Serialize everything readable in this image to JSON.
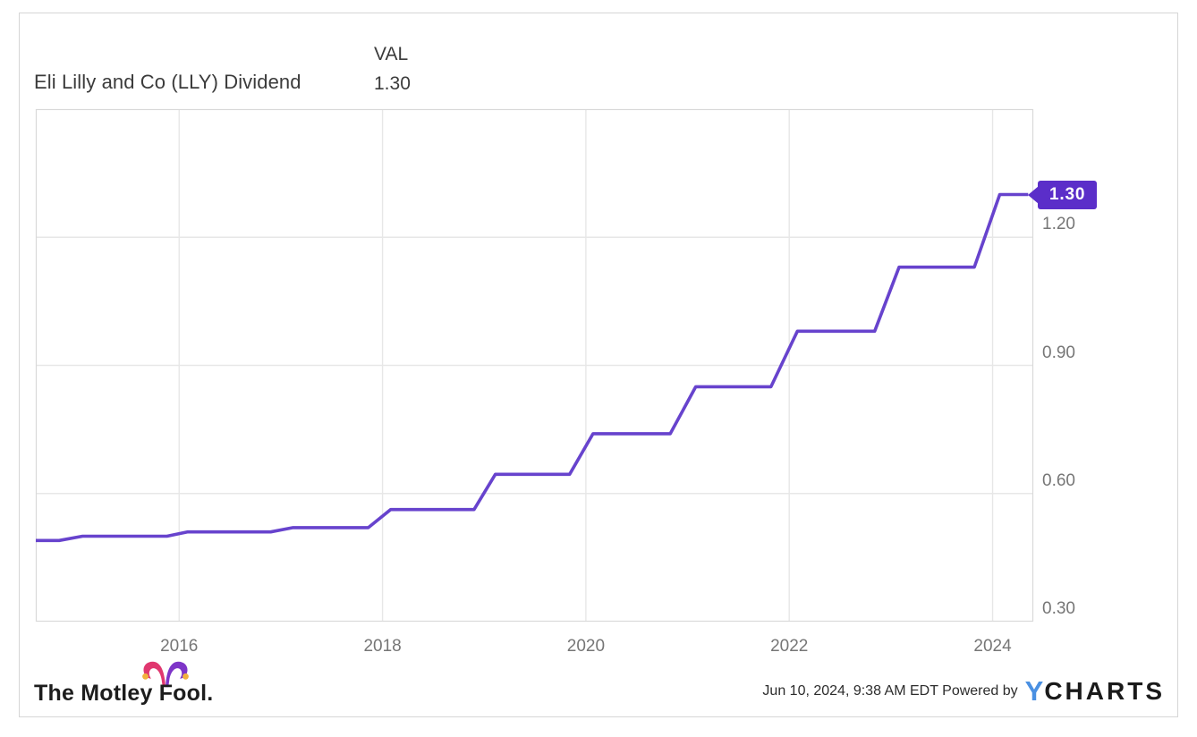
{
  "header": {
    "title": "Eli Lilly and Co (LLY) Dividend",
    "legend": {
      "column_label": "VAL",
      "value": "1.30"
    }
  },
  "chart_data": {
    "type": "line",
    "title": "Eli Lilly and Co (LLY) Dividend",
    "series_name": "VAL",
    "last_value": 1.3,
    "x_range": [
      2014.59,
      2024.4
    ],
    "ylim": [
      0.3,
      1.5
    ],
    "grid": true,
    "legend_position": "top",
    "x_ticks": [
      {
        "value": 2016,
        "label": "2016"
      },
      {
        "value": 2018,
        "label": "2018"
      },
      {
        "value": 2020,
        "label": "2020"
      },
      {
        "value": 2022,
        "label": "2022"
      },
      {
        "value": 2024,
        "label": "2024"
      }
    ],
    "y_ticks": [
      {
        "value": 1.2,
        "label": "1.20"
      },
      {
        "value": 0.9,
        "label": "0.90"
      },
      {
        "value": 0.6,
        "label": "0.60"
      },
      {
        "value": 0.3,
        "label": "0.30"
      }
    ],
    "points": [
      [
        2014.59,
        0.49
      ],
      [
        2014.82,
        0.49
      ],
      [
        2015.05,
        0.5
      ],
      [
        2015.88,
        0.5
      ],
      [
        2016.08,
        0.51
      ],
      [
        2016.9,
        0.51
      ],
      [
        2017.12,
        0.52
      ],
      [
        2017.86,
        0.52
      ],
      [
        2018.08,
        0.5625
      ],
      [
        2018.9,
        0.5625
      ],
      [
        2019.11,
        0.645
      ],
      [
        2019.84,
        0.645
      ],
      [
        2020.07,
        0.74
      ],
      [
        2020.83,
        0.74
      ],
      [
        2021.08,
        0.85
      ],
      [
        2021.82,
        0.85
      ],
      [
        2022.08,
        0.98
      ],
      [
        2022.84,
        0.98
      ],
      [
        2023.08,
        1.13
      ],
      [
        2023.82,
        1.13
      ],
      [
        2024.07,
        1.3
      ],
      [
        2024.35,
        1.3
      ]
    ],
    "quarterly_dividend_by_year": {
      "2014": 0.49,
      "2015": 0.5,
      "2016": 0.51,
      "2017": 0.52,
      "2018": 0.5625,
      "2019": 0.645,
      "2020": 0.74,
      "2021": 0.85,
      "2022": 0.98,
      "2023": 1.13,
      "2024": 1.3
    }
  },
  "badge": {
    "label": "1.30"
  },
  "footer": {
    "motley_fool_wordmark": "The Motley Fool.",
    "timestamp_and_powered_by": "Jun 10, 2024, 9:38 AM EDT Powered by",
    "ycharts_y": "Y",
    "ycharts_rest": "CHARTS"
  },
  "colors": {
    "line": "#6743cd",
    "badge_bg": "#5b2ec9",
    "badge_text": "#ffffff",
    "grid": "#e7e7e7",
    "plot_border": "#d9d9d9",
    "tick_label": "#767676",
    "title_text": "#3b3b3b",
    "ycharts_y_blue": "#4a90e2",
    "ycharts_rest_black": "#1a1a1a",
    "fool_pink": "#e0376f",
    "fool_purple": "#7e35c8",
    "fool_bell": "#f2b13c",
    "fool_text": "#1d1d1d"
  }
}
